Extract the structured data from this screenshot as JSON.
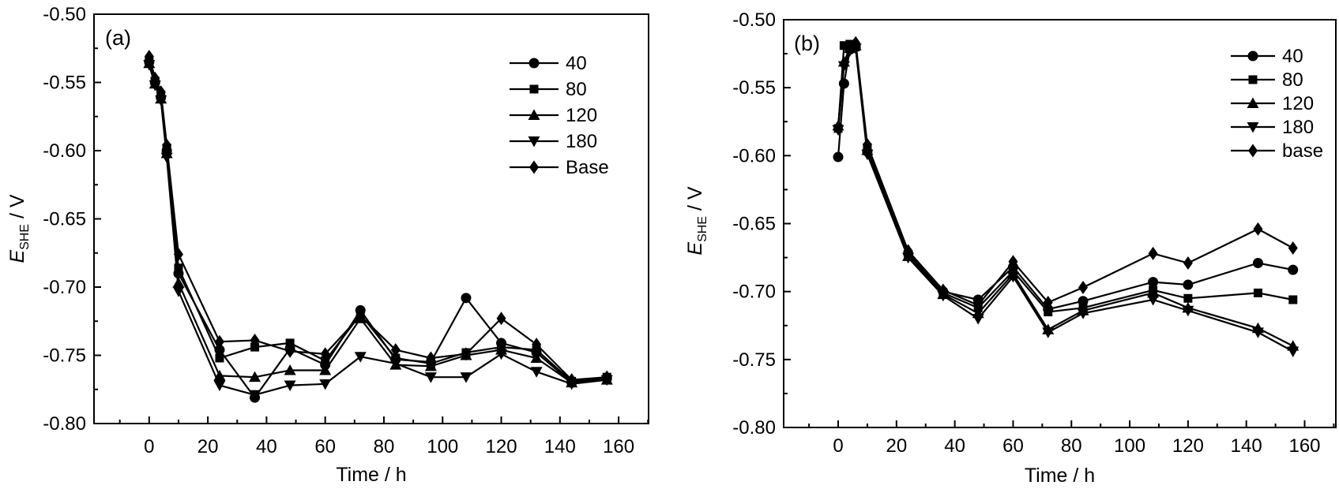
{
  "figure": {
    "background": "#ffffff",
    "series_color": "#000000",
    "description": "Two-panel line chart of electrode potential vs immersion time"
  },
  "chart_data": [
    {
      "type": "line",
      "panel_label": "(a)",
      "xlabel": "Time / h",
      "ylabel": {
        "variable": "E",
        "subscript": "SHE",
        "suffix": " / V"
      },
      "xlim": [
        -18.8,
        170.2
      ],
      "ylim": [
        -0.8,
        -0.5
      ],
      "x_ticks": [
        0,
        20,
        40,
        60,
        80,
        100,
        120,
        140,
        160
      ],
      "x_tick_labels": [
        "0",
        "20",
        "40",
        "60",
        "80",
        "100",
        "120",
        "140",
        "160"
      ],
      "y_ticks": [
        -0.5,
        -0.55,
        -0.6,
        -0.65,
        -0.7,
        -0.75,
        -0.8
      ],
      "y_tick_labels": [
        "-0.50",
        "-0.55",
        "-0.60",
        "-0.65",
        "-0.70",
        "-0.75",
        "-0.80"
      ],
      "x_minor_step": 10,
      "y_minor_step": 0.025,
      "grid": false,
      "legend_position": "top-right-inside",
      "x": [
        0,
        2,
        4,
        6,
        10,
        24,
        36,
        48,
        60,
        72,
        84,
        96,
        108,
        120,
        132,
        144,
        156
      ],
      "series": [
        {
          "name": "40",
          "marker": "circle",
          "values": [
            -0.535,
            -0.55,
            -0.561,
            -0.6,
            -0.69,
            -0.746,
            -0.781,
            -0.745,
            -0.757,
            -0.717,
            -0.753,
            -0.755,
            -0.708,
            -0.741,
            -0.748,
            -0.77,
            -0.767
          ]
        },
        {
          "name": "80",
          "marker": "square",
          "values": [
            -0.534,
            -0.549,
            -0.559,
            -0.598,
            -0.686,
            -0.752,
            -0.744,
            -0.741,
            -0.754,
            -0.72,
            -0.752,
            -0.756,
            -0.748,
            -0.744,
            -0.746,
            -0.769,
            -0.766
          ]
        },
        {
          "name": "120",
          "marker": "triangle-up",
          "values": [
            -0.536,
            -0.551,
            -0.562,
            -0.602,
            -0.697,
            -0.765,
            -0.766,
            -0.761,
            -0.761,
            -0.723,
            -0.757,
            -0.758,
            -0.75,
            -0.746,
            -0.752,
            -0.77,
            -0.768
          ]
        },
        {
          "name": "180",
          "marker": "triangle-down",
          "values": [
            -0.537,
            -0.552,
            -0.563,
            -0.605,
            -0.703,
            -0.772,
            -0.779,
            -0.772,
            -0.771,
            -0.751,
            -0.756,
            -0.766,
            -0.766,
            -0.749,
            -0.762,
            -0.771,
            -0.768
          ]
        },
        {
          "name": "Base",
          "marker": "diamond",
          "values": [
            -0.531,
            -0.547,
            -0.557,
            -0.596,
            -0.676,
            -0.74,
            -0.739,
            -0.747,
            -0.749,
            -0.721,
            -0.746,
            -0.752,
            -0.749,
            -0.723,
            -0.742,
            -0.768,
            -0.766
          ]
        }
      ]
    },
    {
      "type": "line",
      "panel_label": "(b)",
      "xlabel": "Time / h",
      "ylabel": {
        "variable": "E",
        "subscript": "SHE",
        "suffix": " / V"
      },
      "xlim": [
        -18.7,
        170.7
      ],
      "ylim": [
        -0.8,
        -0.5
      ],
      "x_ticks": [
        0,
        20,
        40,
        60,
        80,
        100,
        120,
        140,
        160
      ],
      "x_tick_labels": [
        "0",
        "20",
        "40",
        "60",
        "80",
        "100",
        "120",
        "140",
        "160"
      ],
      "y_ticks": [
        -0.5,
        -0.55,
        -0.6,
        -0.65,
        -0.7,
        -0.75,
        -0.8
      ],
      "y_tick_labels": [
        "-0.50",
        "-0.55",
        "-0.60",
        "-0.65",
        "-0.70",
        "-0.75",
        "-0.80"
      ],
      "x_minor_step": 10,
      "y_minor_step": 0.025,
      "grid": false,
      "legend_position": "top-right-inside",
      "x": [
        0,
        2,
        4,
        6,
        10,
        24,
        36,
        48,
        60,
        72,
        84,
        108,
        120,
        144,
        156
      ],
      "series": [
        {
          "name": "40",
          "marker": "circle",
          "values": [
            -0.601,
            -0.547,
            -0.522,
            -0.52,
            -0.597,
            -0.672,
            -0.7,
            -0.706,
            -0.682,
            -0.713,
            -0.707,
            -0.693,
            -0.695,
            -0.679,
            -0.684
          ]
        },
        {
          "name": "80",
          "marker": "square",
          "values": [
            -0.58,
            -0.519,
            -0.518,
            -0.52,
            -0.594,
            -0.673,
            -0.701,
            -0.712,
            -0.685,
            -0.715,
            -0.712,
            -0.699,
            -0.705,
            -0.701,
            -0.706
          ]
        },
        {
          "name": "120",
          "marker": "triangle-up",
          "values": [
            -0.578,
            -0.531,
            -0.521,
            -0.519,
            -0.596,
            -0.674,
            -0.702,
            -0.716,
            -0.687,
            -0.728,
            -0.714,
            -0.701,
            -0.712,
            -0.727,
            -0.74
          ]
        },
        {
          "name": "180",
          "marker": "triangle-down",
          "values": [
            -0.581,
            -0.534,
            -0.523,
            -0.521,
            -0.599,
            -0.675,
            -0.703,
            -0.72,
            -0.689,
            -0.73,
            -0.716,
            -0.706,
            -0.714,
            -0.73,
            -0.744
          ]
        },
        {
          "name": "base",
          "marker": "diamond",
          "values": [
            -0.579,
            -0.533,
            -0.52,
            -0.517,
            -0.592,
            -0.67,
            -0.699,
            -0.71,
            -0.678,
            -0.708,
            -0.697,
            -0.672,
            -0.679,
            -0.654,
            -0.668
          ]
        }
      ]
    }
  ]
}
